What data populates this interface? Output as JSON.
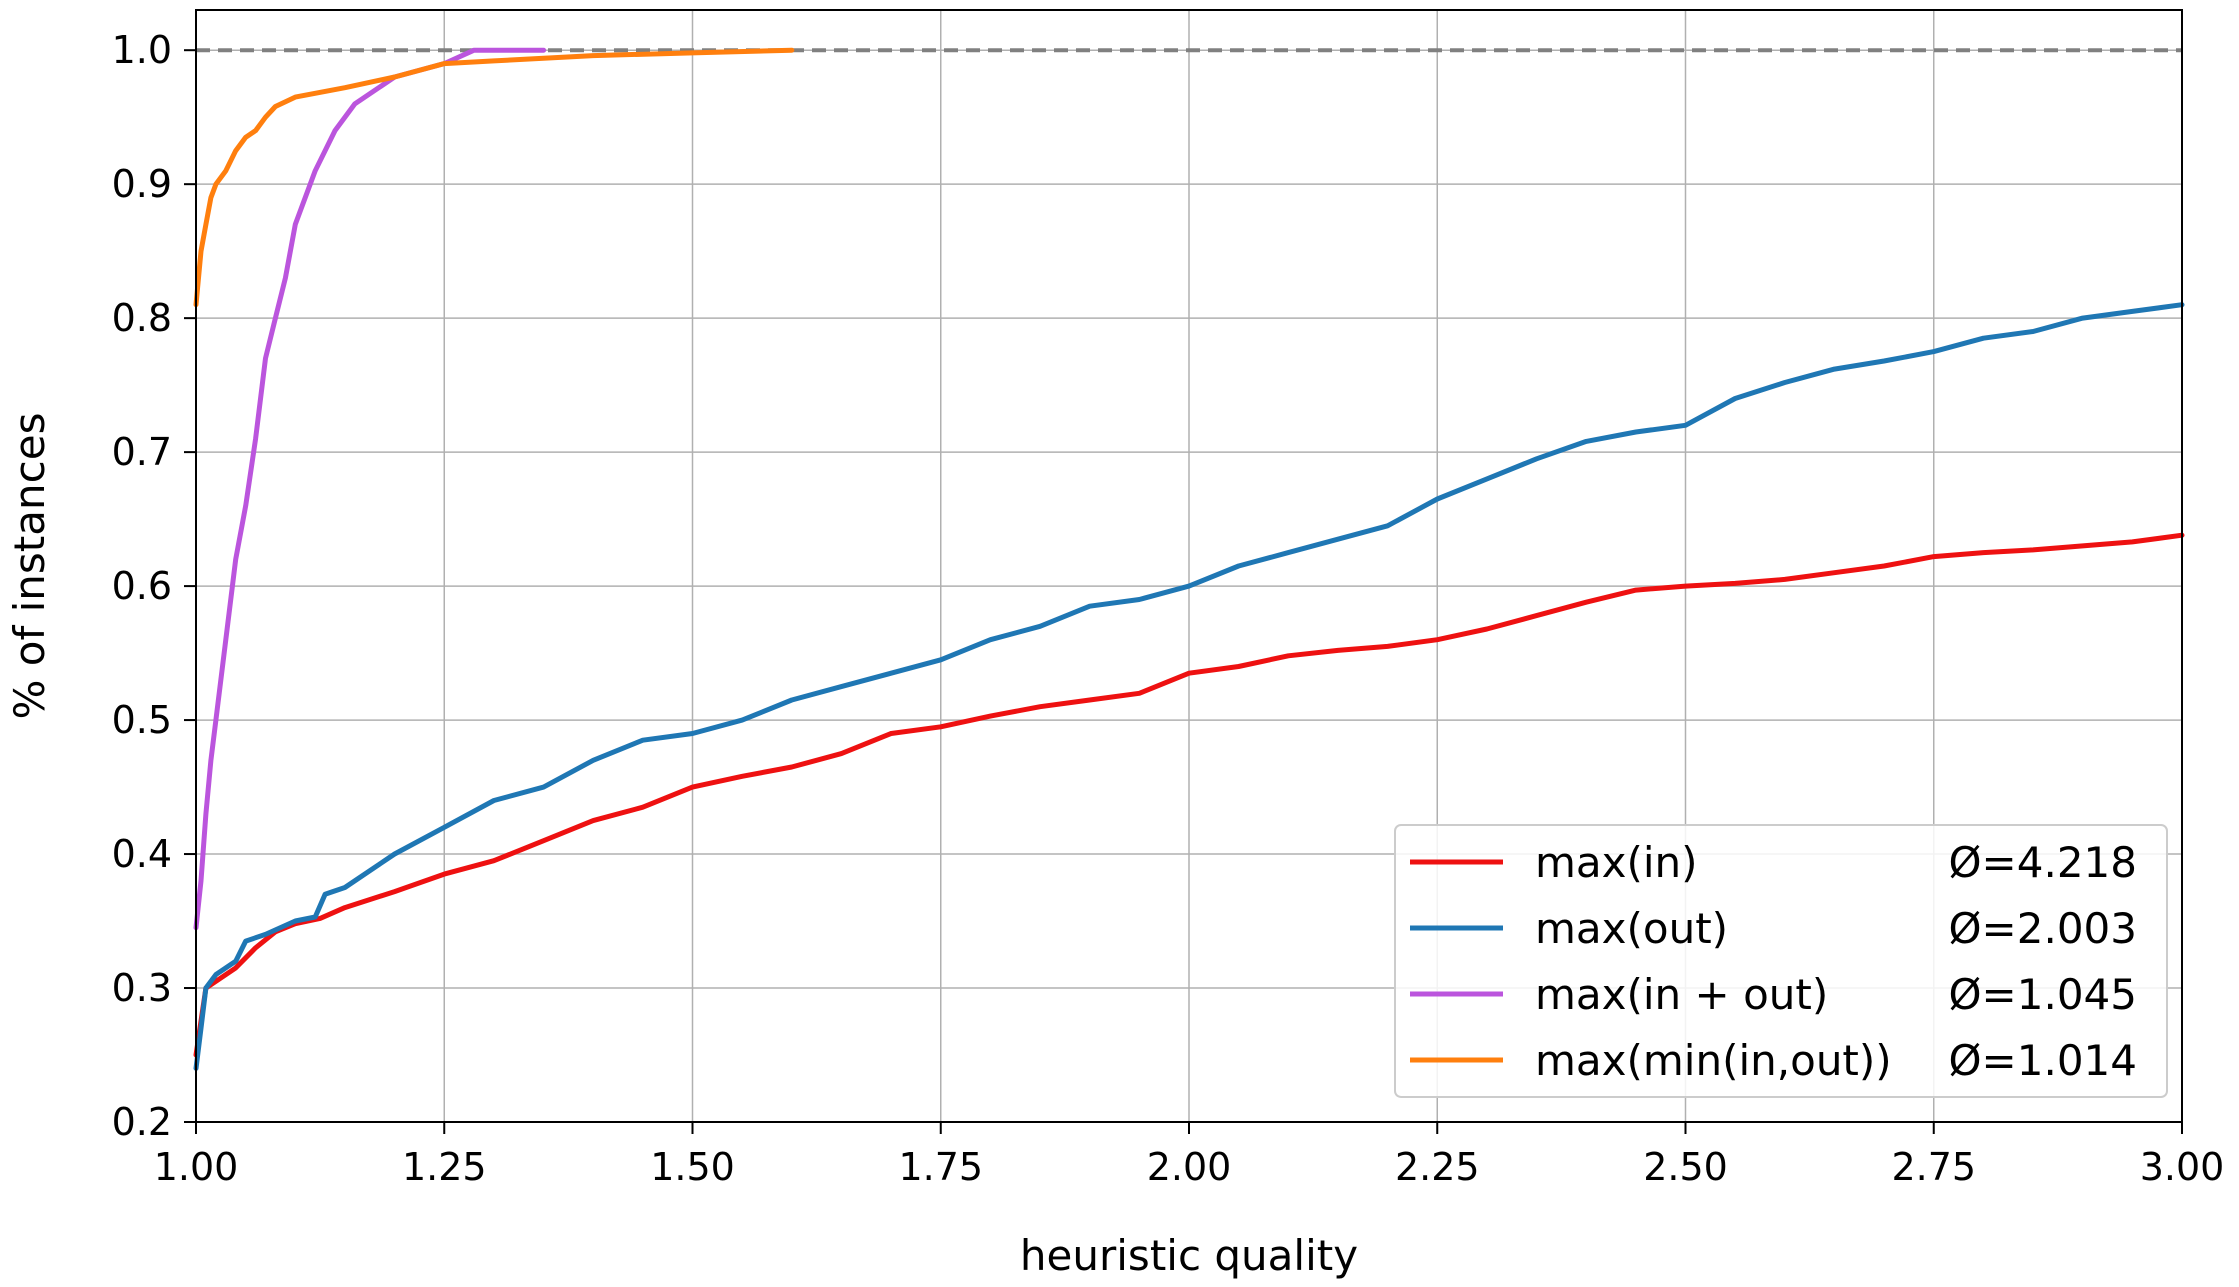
{
  "chart_data": {
    "type": "line",
    "xlabel": "heuristic quality",
    "ylabel": "% of instances",
    "xlim": [
      1.0,
      3.0
    ],
    "ylim": [
      0.2,
      1.03
    ],
    "xticks": [
      "1.00",
      "1.25",
      "1.50",
      "1.75",
      "2.00",
      "2.25",
      "2.50",
      "2.75",
      "3.00"
    ],
    "yticks": [
      "0.2",
      "0.3",
      "0.4",
      "0.5",
      "0.6",
      "0.7",
      "0.8",
      "0.9",
      "1.0"
    ],
    "grid": true,
    "reference_line": {
      "y": 1.0,
      "style": "dashed",
      "color": "#808080"
    },
    "legend_position": "lower-right",
    "series": [
      {
        "name": "max(in)",
        "stat": "Ø=4.218",
        "color": "#ee1111",
        "x": [
          1.0,
          1.01,
          1.02,
          1.04,
          1.06,
          1.08,
          1.1,
          1.125,
          1.15,
          1.2,
          1.25,
          1.3,
          1.35,
          1.4,
          1.45,
          1.5,
          1.55,
          1.6,
          1.65,
          1.7,
          1.75,
          1.8,
          1.85,
          1.9,
          1.95,
          2.0,
          2.05,
          2.1,
          2.15,
          2.2,
          2.25,
          2.3,
          2.35,
          2.4,
          2.45,
          2.5,
          2.55,
          2.6,
          2.65,
          2.7,
          2.75,
          2.8,
          2.85,
          2.9,
          2.95,
          3.0
        ],
        "y": [
          0.25,
          0.3,
          0.305,
          0.315,
          0.33,
          0.342,
          0.348,
          0.352,
          0.36,
          0.372,
          0.385,
          0.395,
          0.41,
          0.425,
          0.435,
          0.45,
          0.458,
          0.465,
          0.475,
          0.49,
          0.495,
          0.503,
          0.51,
          0.515,
          0.52,
          0.535,
          0.54,
          0.548,
          0.552,
          0.555,
          0.56,
          0.568,
          0.578,
          0.588,
          0.597,
          0.6,
          0.602,
          0.605,
          0.61,
          0.615,
          0.622,
          0.625,
          0.627,
          0.63,
          0.633,
          0.638
        ]
      },
      {
        "name": "max(out)",
        "stat": "Ø=2.003",
        "color": "#1f77b4",
        "x": [
          1.0,
          1.005,
          1.01,
          1.02,
          1.04,
          1.05,
          1.07,
          1.1,
          1.12,
          1.13,
          1.15,
          1.2,
          1.25,
          1.3,
          1.35,
          1.4,
          1.45,
          1.5,
          1.55,
          1.6,
          1.65,
          1.7,
          1.75,
          1.8,
          1.85,
          1.9,
          1.95,
          2.0,
          2.05,
          2.1,
          2.15,
          2.2,
          2.25,
          2.3,
          2.35,
          2.4,
          2.45,
          2.5,
          2.55,
          2.6,
          2.65,
          2.7,
          2.75,
          2.8,
          2.85,
          2.9,
          2.95,
          3.0
        ],
        "y": [
          0.24,
          0.27,
          0.3,
          0.31,
          0.32,
          0.335,
          0.34,
          0.35,
          0.353,
          0.37,
          0.375,
          0.4,
          0.42,
          0.44,
          0.45,
          0.47,
          0.485,
          0.49,
          0.5,
          0.515,
          0.525,
          0.535,
          0.545,
          0.56,
          0.57,
          0.585,
          0.59,
          0.6,
          0.615,
          0.625,
          0.635,
          0.645,
          0.665,
          0.68,
          0.695,
          0.708,
          0.715,
          0.72,
          0.74,
          0.752,
          0.762,
          0.768,
          0.775,
          0.785,
          0.79,
          0.8,
          0.805,
          0.81
        ]
      },
      {
        "name": "max(in + out)",
        "stat": "Ø=1.045",
        "color": "#bb55dd",
        "x": [
          1.0,
          1.005,
          1.01,
          1.015,
          1.02,
          1.03,
          1.04,
          1.05,
          1.06,
          1.07,
          1.08,
          1.09,
          1.1,
          1.12,
          1.14,
          1.16,
          1.2,
          1.25,
          1.28,
          1.35
        ],
        "y": [
          0.345,
          0.38,
          0.43,
          0.47,
          0.5,
          0.56,
          0.62,
          0.66,
          0.71,
          0.77,
          0.8,
          0.83,
          0.87,
          0.91,
          0.94,
          0.96,
          0.98,
          0.99,
          1.0,
          1.0
        ]
      },
      {
        "name": "max(min(in,out))",
        "stat": "Ø=1.014",
        "color": "#ff7f0e",
        "x": [
          1.0,
          1.005,
          1.01,
          1.015,
          1.02,
          1.03,
          1.04,
          1.05,
          1.06,
          1.07,
          1.08,
          1.1,
          1.15,
          1.2,
          1.25,
          1.3,
          1.35,
          1.4,
          1.5,
          1.6
        ],
        "y": [
          0.81,
          0.85,
          0.87,
          0.89,
          0.9,
          0.91,
          0.925,
          0.935,
          0.94,
          0.95,
          0.958,
          0.965,
          0.972,
          0.98,
          0.99,
          0.992,
          0.994,
          0.996,
          0.998,
          1.0
        ]
      }
    ]
  }
}
